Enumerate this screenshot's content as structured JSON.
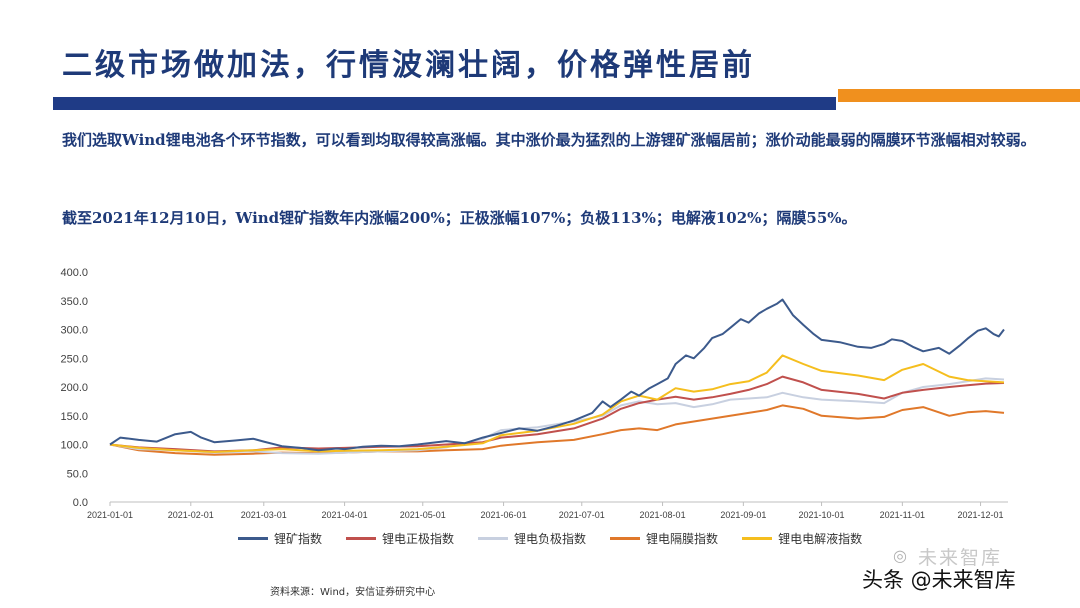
{
  "header": {
    "title": "二级市场做加法，行情波澜壮阔，价格弹性居前"
  },
  "body": {
    "paragraph1": "我们选取Wind锂电池各个环节指数，可以看到均取得较高涨幅。其中涨价最为猛烈的上游锂矿涨幅居前；涨价动能最弱的隔膜环节涨幅相对较弱。",
    "paragraph2": "截至2021年12月10日，Wind锂矿指数年内涨幅200%；正极涨幅107%；负极113%；电解液102%；隔膜55%。"
  },
  "footer": {
    "source": "资料来源：Wind，安信证券研究中心",
    "watermark": "头条 @未来智库",
    "watermark_faint": "未来智库"
  },
  "chart_data": {
    "type": "line",
    "x_ticks": [
      "2021-01-01",
      "2021-02-01",
      "2021-03-01",
      "2021-04-01",
      "2021-05-01",
      "2021-06-01",
      "2021-07-01",
      "2021-08-01",
      "2021-09-01",
      "2021-10-01",
      "2021-11-01",
      "2021-12-01"
    ],
    "y_ticks": [
      "0.0",
      "50.0",
      "100.0",
      "150.0",
      "200.0",
      "250.0",
      "300.0",
      "350.0",
      "400.0"
    ],
    "ylim": [
      0,
      400
    ],
    "xlim": [
      "2021-01-01",
      "2021-12-10"
    ],
    "grid": false,
    "legend_position": "bottom",
    "series": [
      {
        "name": "锂矿指数",
        "color": "#3c5a8c",
        "points": [
          [
            "2021-01-01",
            100
          ],
          [
            "2021-01-05",
            112
          ],
          [
            "2021-01-12",
            108
          ],
          [
            "2021-01-19",
            105
          ],
          [
            "2021-01-26",
            118
          ],
          [
            "2021-02-01",
            122
          ],
          [
            "2021-02-05",
            112
          ],
          [
            "2021-02-10",
            104
          ],
          [
            "2021-02-18",
            107
          ],
          [
            "2021-02-25",
            110
          ],
          [
            "2021-03-01",
            105
          ],
          [
            "2021-03-08",
            97
          ],
          [
            "2021-03-15",
            94
          ],
          [
            "2021-03-22",
            90
          ],
          [
            "2021-03-29",
            93
          ],
          [
            "2021-04-01",
            92
          ],
          [
            "2021-04-08",
            96
          ],
          [
            "2021-04-15",
            98
          ],
          [
            "2021-04-22",
            97
          ],
          [
            "2021-04-29",
            100
          ],
          [
            "2021-05-01",
            101
          ],
          [
            "2021-05-10",
            106
          ],
          [
            "2021-05-17",
            102
          ],
          [
            "2021-05-24",
            112
          ],
          [
            "2021-05-31",
            120
          ],
          [
            "2021-06-07",
            128
          ],
          [
            "2021-06-14",
            124
          ],
          [
            "2021-06-21",
            132
          ],
          [
            "2021-06-28",
            142
          ],
          [
            "2021-07-05",
            155
          ],
          [
            "2021-07-09",
            175
          ],
          [
            "2021-07-12",
            165
          ],
          [
            "2021-07-16",
            178
          ],
          [
            "2021-07-20",
            192
          ],
          [
            "2021-07-23",
            185
          ],
          [
            "2021-07-27",
            198
          ],
          [
            "2021-07-30",
            205
          ],
          [
            "2021-08-03",
            215
          ],
          [
            "2021-08-06",
            240
          ],
          [
            "2021-08-10",
            255
          ],
          [
            "2021-08-13",
            250
          ],
          [
            "2021-08-17",
            268
          ],
          [
            "2021-08-20",
            285
          ],
          [
            "2021-08-24",
            292
          ],
          [
            "2021-08-27",
            303
          ],
          [
            "2021-08-31",
            318
          ],
          [
            "2021-09-03",
            312
          ],
          [
            "2021-09-07",
            328
          ],
          [
            "2021-09-10",
            336
          ],
          [
            "2021-09-14",
            345
          ],
          [
            "2021-09-16",
            352
          ],
          [
            "2021-09-20",
            325
          ],
          [
            "2021-09-24",
            308
          ],
          [
            "2021-09-28",
            292
          ],
          [
            "2021-10-01",
            282
          ],
          [
            "2021-10-08",
            278
          ],
          [
            "2021-10-15",
            270
          ],
          [
            "2021-10-20",
            268
          ],
          [
            "2021-10-25",
            275
          ],
          [
            "2021-10-28",
            283
          ],
          [
            "2021-11-01",
            280
          ],
          [
            "2021-11-05",
            270
          ],
          [
            "2021-11-09",
            262
          ],
          [
            "2021-11-15",
            268
          ],
          [
            "2021-11-19",
            258
          ],
          [
            "2021-11-23",
            272
          ],
          [
            "2021-11-26",
            284
          ],
          [
            "2021-11-30",
            298
          ],
          [
            "2021-12-03",
            302
          ],
          [
            "2021-12-06",
            292
          ],
          [
            "2021-12-08",
            288
          ],
          [
            "2021-12-10",
            300
          ]
        ]
      },
      {
        "name": "锂电正极指数",
        "color": "#c0504d",
        "points": [
          [
            "2021-01-01",
            100
          ],
          [
            "2021-01-12",
            95
          ],
          [
            "2021-01-26",
            92
          ],
          [
            "2021-02-10",
            88
          ],
          [
            "2021-02-25",
            90
          ],
          [
            "2021-03-08",
            95
          ],
          [
            "2021-03-22",
            93
          ],
          [
            "2021-04-01",
            94
          ],
          [
            "2021-04-15",
            96
          ],
          [
            "2021-04-29",
            97
          ],
          [
            "2021-05-10",
            100
          ],
          [
            "2021-05-24",
            104
          ],
          [
            "2021-05-31",
            112
          ],
          [
            "2021-06-14",
            118
          ],
          [
            "2021-06-28",
            128
          ],
          [
            "2021-07-09",
            145
          ],
          [
            "2021-07-16",
            162
          ],
          [
            "2021-07-23",
            172
          ],
          [
            "2021-07-30",
            178
          ],
          [
            "2021-08-06",
            183
          ],
          [
            "2021-08-13",
            178
          ],
          [
            "2021-08-20",
            182
          ],
          [
            "2021-08-27",
            188
          ],
          [
            "2021-09-03",
            195
          ],
          [
            "2021-09-10",
            205
          ],
          [
            "2021-09-16",
            218
          ],
          [
            "2021-09-24",
            208
          ],
          [
            "2021-10-01",
            195
          ],
          [
            "2021-10-15",
            188
          ],
          [
            "2021-10-25",
            180
          ],
          [
            "2021-11-01",
            190
          ],
          [
            "2021-11-09",
            195
          ],
          [
            "2021-11-19",
            200
          ],
          [
            "2021-11-26",
            203
          ],
          [
            "2021-12-03",
            206
          ],
          [
            "2021-12-10",
            207
          ]
        ]
      },
      {
        "name": "锂电负极指数",
        "color": "#c8d0e0",
        "points": [
          [
            "2021-01-01",
            100
          ],
          [
            "2021-01-12",
            92
          ],
          [
            "2021-01-26",
            90
          ],
          [
            "2021-02-10",
            86
          ],
          [
            "2021-02-25",
            88
          ],
          [
            "2021-03-08",
            85
          ],
          [
            "2021-03-22",
            84
          ],
          [
            "2021-04-01",
            86
          ],
          [
            "2021-04-15",
            88
          ],
          [
            "2021-04-29",
            90
          ],
          [
            "2021-05-10",
            95
          ],
          [
            "2021-05-24",
            110
          ],
          [
            "2021-05-31",
            125
          ],
          [
            "2021-06-14",
            130
          ],
          [
            "2021-06-28",
            140
          ],
          [
            "2021-07-09",
            150
          ],
          [
            "2021-07-16",
            168
          ],
          [
            "2021-07-23",
            175
          ],
          [
            "2021-07-30",
            170
          ],
          [
            "2021-08-06",
            172
          ],
          [
            "2021-08-13",
            165
          ],
          [
            "2021-08-20",
            170
          ],
          [
            "2021-08-27",
            178
          ],
          [
            "2021-09-03",
            180
          ],
          [
            "2021-09-10",
            182
          ],
          [
            "2021-09-16",
            190
          ],
          [
            "2021-09-24",
            182
          ],
          [
            "2021-10-01",
            178
          ],
          [
            "2021-10-15",
            175
          ],
          [
            "2021-10-25",
            172
          ],
          [
            "2021-11-01",
            190
          ],
          [
            "2021-11-09",
            200
          ],
          [
            "2021-11-19",
            205
          ],
          [
            "2021-11-26",
            210
          ],
          [
            "2021-12-03",
            215
          ],
          [
            "2021-12-10",
            213
          ]
        ]
      },
      {
        "name": "锂电隔膜指数",
        "color": "#e0782a",
        "points": [
          [
            "2021-01-01",
            100
          ],
          [
            "2021-01-12",
            90
          ],
          [
            "2021-01-26",
            85
          ],
          [
            "2021-02-10",
            82
          ],
          [
            "2021-02-25",
            84
          ],
          [
            "2021-03-08",
            86
          ],
          [
            "2021-03-22",
            85
          ],
          [
            "2021-04-01",
            86
          ],
          [
            "2021-04-15",
            88
          ],
          [
            "2021-04-29",
            88
          ],
          [
            "2021-05-10",
            90
          ],
          [
            "2021-05-24",
            92
          ],
          [
            "2021-05-31",
            98
          ],
          [
            "2021-06-14",
            104
          ],
          [
            "2021-06-28",
            108
          ],
          [
            "2021-07-09",
            118
          ],
          [
            "2021-07-16",
            125
          ],
          [
            "2021-07-23",
            128
          ],
          [
            "2021-07-30",
            125
          ],
          [
            "2021-08-06",
            135
          ],
          [
            "2021-08-13",
            140
          ],
          [
            "2021-08-20",
            145
          ],
          [
            "2021-08-27",
            150
          ],
          [
            "2021-09-03",
            155
          ],
          [
            "2021-09-10",
            160
          ],
          [
            "2021-09-16",
            168
          ],
          [
            "2021-09-24",
            162
          ],
          [
            "2021-10-01",
            150
          ],
          [
            "2021-10-15",
            145
          ],
          [
            "2021-10-25",
            148
          ],
          [
            "2021-11-01",
            160
          ],
          [
            "2021-11-09",
            165
          ],
          [
            "2021-11-19",
            150
          ],
          [
            "2021-11-26",
            156
          ],
          [
            "2021-12-03",
            158
          ],
          [
            "2021-12-10",
            155
          ]
        ]
      },
      {
        "name": "锂电电解液指数",
        "color": "#f5be1e",
        "points": [
          [
            "2021-01-01",
            100
          ],
          [
            "2021-01-12",
            94
          ],
          [
            "2021-01-26",
            90
          ],
          [
            "2021-02-10",
            87
          ],
          [
            "2021-02-25",
            90
          ],
          [
            "2021-03-08",
            92
          ],
          [
            "2021-03-22",
            88
          ],
          [
            "2021-04-01",
            89
          ],
          [
            "2021-04-15",
            90
          ],
          [
            "2021-04-29",
            92
          ],
          [
            "2021-05-10",
            96
          ],
          [
            "2021-05-24",
            102
          ],
          [
            "2021-05-31",
            116
          ],
          [
            "2021-06-14",
            124
          ],
          [
            "2021-06-28",
            136
          ],
          [
            "2021-07-09",
            152
          ],
          [
            "2021-07-16",
            175
          ],
          [
            "2021-07-23",
            185
          ],
          [
            "2021-07-30",
            178
          ],
          [
            "2021-08-06",
            198
          ],
          [
            "2021-08-13",
            192
          ],
          [
            "2021-08-20",
            196
          ],
          [
            "2021-08-27",
            205
          ],
          [
            "2021-09-03",
            210
          ],
          [
            "2021-09-10",
            225
          ],
          [
            "2021-09-16",
            255
          ],
          [
            "2021-09-24",
            240
          ],
          [
            "2021-10-01",
            228
          ],
          [
            "2021-10-15",
            220
          ],
          [
            "2021-10-25",
            212
          ],
          [
            "2021-11-01",
            230
          ],
          [
            "2021-11-09",
            240
          ],
          [
            "2021-11-19",
            218
          ],
          [
            "2021-11-26",
            212
          ],
          [
            "2021-12-03",
            210
          ],
          [
            "2021-12-10",
            208
          ]
        ]
      }
    ]
  }
}
